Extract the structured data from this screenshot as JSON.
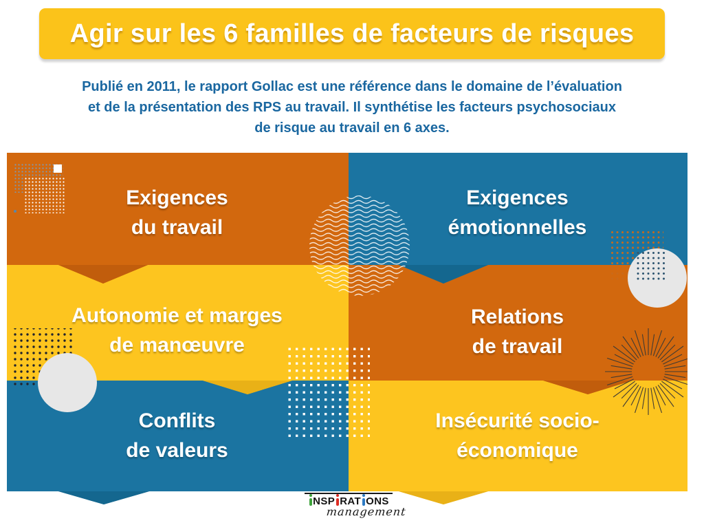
{
  "header": {
    "title": "Agir sur les 6 familles de facteurs de risques"
  },
  "intro": {
    "line1": "Publié en 2011, le rapport Gollac est une référence dans le domaine de l’évaluation",
    "line2": "et de la présentation des RPS au travail. Il synthétise les facteurs psychosociaux",
    "line3": "de risque au travail en 6 axes."
  },
  "grid": {
    "cells": [
      {
        "id": "exigences-travail",
        "line1": "Exigences",
        "line2": "du travail",
        "bg": "orange"
      },
      {
        "id": "exigences-emotionnelles",
        "line1": "Exigences",
        "line2": "émotionnelles",
        "bg": "blue"
      },
      {
        "id": "autonomie-marges",
        "line1": "Autonomie et marges",
        "line2": "de manœuvre",
        "bg": "yellow"
      },
      {
        "id": "relations-travail",
        "line1": "Relations",
        "line2": "de travail",
        "bg": "orange"
      },
      {
        "id": "conflits-valeurs",
        "line1": "Conflits",
        "line2": "de valeurs",
        "bg": "blue"
      },
      {
        "id": "insecurite-socio",
        "line1": "Insécurité socio-",
        "line2": "économique",
        "bg": "yellow"
      }
    ]
  },
  "logo": {
    "seg1": "NSP",
    "seg2": "RAT",
    "seg3": "ONS",
    "subtitle": "management",
    "i_colors": [
      "#3FA33C",
      "#DD2C23",
      "#2E7BC4"
    ]
  },
  "colors": {
    "banner_yellow": "#FBC31A",
    "yellow": "#FDC51F",
    "yellow_dark": "#E9B117",
    "orange": "#D2680E",
    "orange_dark": "#C15D0C",
    "blue": "#1B74A1",
    "blue_dark": "#14678F",
    "intro_text": "#1A67A0",
    "gray_circle": "#E7E7E7"
  },
  "decorations": [
    "dots-pattern",
    "wave-circle",
    "gray-circle",
    "sunburst"
  ]
}
